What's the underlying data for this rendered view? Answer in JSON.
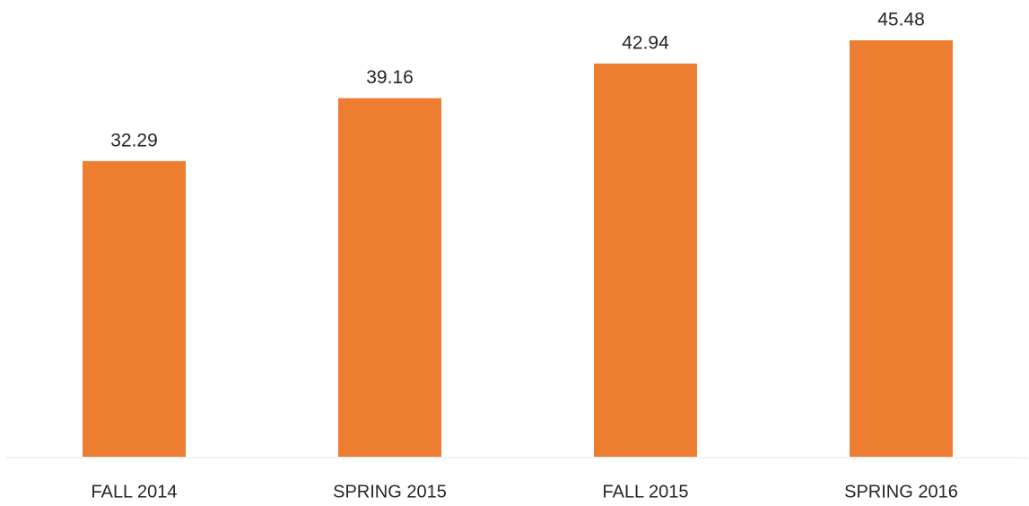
{
  "chart_data": {
    "type": "bar",
    "categories": [
      "FALL 2014",
      "SPRING 2015",
      "FALL 2015",
      "SPRING 2016"
    ],
    "values": [
      32.29,
      39.16,
      42.94,
      45.48
    ],
    "color": "#ed7d31"
  }
}
